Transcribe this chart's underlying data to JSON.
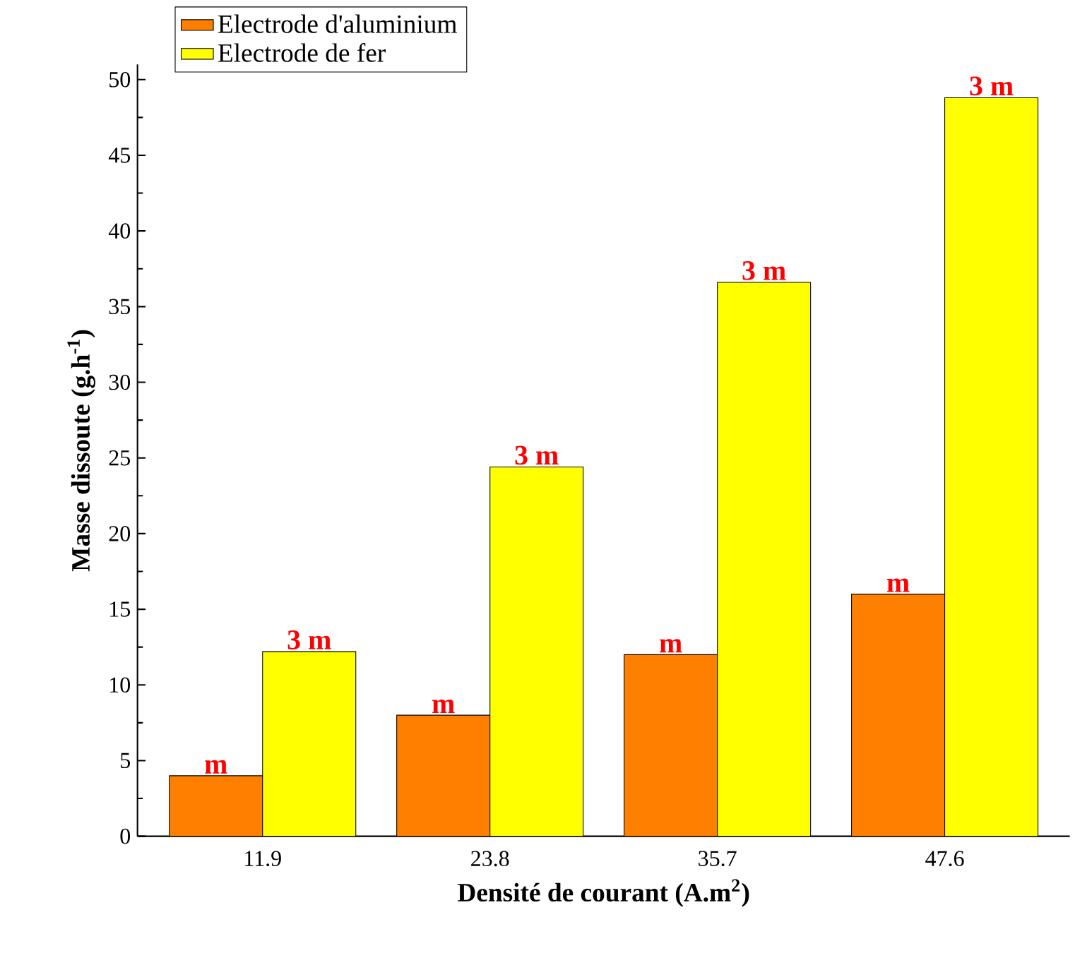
{
  "chart_data": {
    "type": "bar",
    "xlabel": "Densité de courant (A.m$^{2}$)",
    "ylabel": "Masse dissoute (g.h$^{-1}$)",
    "categories": [
      "11.9",
      "23.8",
      "35.7",
      "47.6"
    ],
    "series": [
      {
        "name": "Electrode d'aluminium",
        "color": "#ff8000",
        "values": [
          4,
          8,
          12,
          16
        ]
      },
      {
        "name": "Electrode de fer",
        "color": "#ffff00",
        "values": [
          12.2,
          24.4,
          36.6,
          48.8
        ]
      }
    ],
    "annotations": [
      {
        "text": "m",
        "x": "11.9",
        "y": 4
      },
      {
        "text": "m",
        "x": "23.8",
        "y": 8
      },
      {
        "text": "m",
        "x": "35.7",
        "y": 12
      },
      {
        "text": "m",
        "x": "47.6",
        "y": 16
      },
      {
        "text": "3 m",
        "x": "11.9",
        "y": 12.2
      },
      {
        "text": "3 m",
        "x": "23.8",
        "y": 24.4
      },
      {
        "text": "3 m",
        "x": "35.7",
        "y": 36.6
      },
      {
        "text": "3 m",
        "x": "47.6",
        "y": 48.8
      }
    ],
    "ylim": [
      0,
      51
    ],
    "yticks": [
      0,
      5,
      10,
      15,
      20,
      25,
      30,
      35,
      40,
      45,
      50
    ],
    "legend": "top left"
  }
}
